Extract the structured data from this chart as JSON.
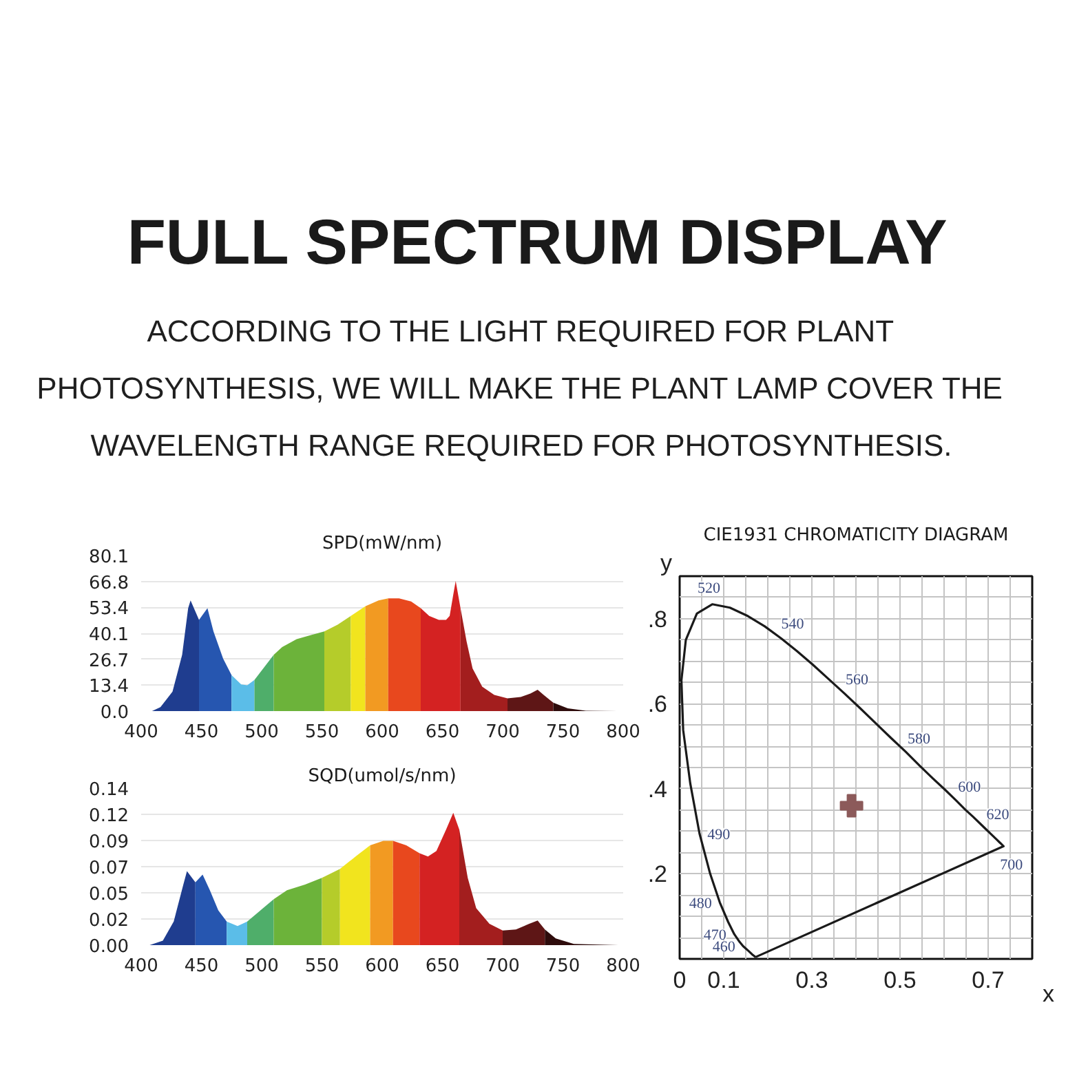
{
  "chart_data": [
    {
      "type": "other",
      "title": "FULL SPECTRUM DISPLAY",
      "subtitle": "ACCORDING TO THE LIGHT REQUIRED FOR PLANT PHOTOSYNTHESIS, WE WILL MAKE THE PLANT LAMP COVER THE WAVELENGTH RANGE REQUIRED FOR PHOTOSYNTHESIS."
    },
    {
      "type": "area",
      "title": "SPD(mW/nm)",
      "xlim": [
        400,
        800
      ],
      "xticks": [
        400,
        450,
        500,
        550,
        600,
        650,
        700,
        750,
        800
      ],
      "ylim": [
        0,
        80.1
      ],
      "yticks": [
        {
          "value": 0,
          "label": "0.0"
        },
        {
          "value": 13.35,
          "label": "13.4"
        },
        26.7,
        {
          "value": 40.05,
          "label": "40.1"
        },
        53.4,
        {
          "value": 66.75,
          "label": "66.8"
        },
        80.1
      ],
      "grid": "y",
      "series": [
        {
          "color": "#1f3d8f",
          "x": [
            409,
            416,
            426,
            434,
            439,
            441,
            448
          ],
          "values": [
            0,
            2,
            10,
            29,
            53,
            57,
            47
          ]
        },
        {
          "color": "#2656b0",
          "x": [
            448,
            455,
            460,
            468,
            475
          ],
          "values": [
            47,
            53,
            41,
            27,
            18.5
          ]
        },
        {
          "color": "#5bbde8",
          "x": [
            475,
            483,
            488,
            494
          ],
          "values": [
            18.5,
            13.7,
            13.3,
            16
          ]
        },
        {
          "color": "#4fae6a",
          "x": [
            494,
            502,
            510
          ],
          "values": [
            16,
            22.5,
            29
          ]
        },
        {
          "color": "#6cb33a",
          "x": [
            510,
            517,
            529,
            540,
            552
          ],
          "values": [
            29,
            33,
            37,
            39,
            41
          ]
        },
        {
          "color": "#b5cc2a",
          "x": [
            552,
            563,
            574
          ],
          "values": [
            41,
            44.5,
            49
          ]
        },
        {
          "color": "#f1e41e",
          "x": [
            574,
            586
          ],
          "values": [
            49,
            54
          ]
        },
        {
          "color": "#f29a22",
          "x": [
            586,
            597,
            605
          ],
          "values": [
            54,
            57,
            58
          ]
        },
        {
          "color": "#e8481e",
          "x": [
            605,
            614,
            624,
            632
          ],
          "values": [
            58,
            58,
            56.4,
            53
          ]
        },
        {
          "color": "#d42222",
          "x": [
            632,
            639,
            647,
            653,
            656,
            659,
            661,
            665
          ],
          "values": [
            53,
            49,
            47,
            47,
            49,
            60,
            67,
            53
          ]
        },
        {
          "color": "#a31e1e",
          "x": [
            665,
            670,
            675,
            683,
            693,
            704
          ],
          "values": [
            53,
            36,
            22,
            12.6,
            8.3,
            6.6
          ]
        },
        {
          "color": "#5e1616",
          "x": [
            704,
            715,
            723,
            729,
            734,
            742
          ],
          "values": [
            6.6,
            7.3,
            9,
            11,
            8.3,
            4.3
          ]
        },
        {
          "color": "#2e0c0c",
          "x": [
            742,
            754,
            769,
            795
          ],
          "values": [
            4.3,
            1.4,
            0.2,
            0
          ]
        }
      ]
    },
    {
      "type": "area",
      "title": "SQD(umol/s/nm)",
      "xlim": [
        400,
        800
      ],
      "xticks": [
        400,
        450,
        500,
        550,
        600,
        650,
        700,
        750,
        800
      ],
      "ylim": [
        0,
        0.14
      ],
      "yticks": [
        {
          "value": 0,
          "label": "0.00"
        },
        {
          "value": 0.0233,
          "label": "0.02"
        },
        {
          "value": 0.0467,
          "label": "0.05"
        },
        0.07,
        {
          "value": 0.0933,
          "label": "0.09"
        },
        {
          "value": 0.1167,
          "label": "0.12"
        },
        0.14
      ],
      "grid": "y",
      "series": [
        {
          "color": "#1f3d8f",
          "x": [
            407,
            418,
            427,
            435,
            438,
            445
          ],
          "values": [
            0,
            0.004,
            0.021,
            0.054,
            0.066,
            0.056
          ]
        },
        {
          "color": "#2656b0",
          "x": [
            445,
            451,
            457,
            464,
            471
          ],
          "values": [
            0.056,
            0.063,
            0.049,
            0.031,
            0.021
          ]
        },
        {
          "color": "#5bbde8",
          "x": [
            471,
            480,
            488
          ],
          "values": [
            0.021,
            0.017,
            0.021
          ]
        },
        {
          "color": "#4fae6a",
          "x": [
            488,
            499,
            510
          ],
          "values": [
            0.021,
            0.031,
            0.041
          ]
        },
        {
          "color": "#6cb33a",
          "x": [
            510,
            521,
            536,
            550
          ],
          "values": [
            0.041,
            0.049,
            0.054,
            0.06
          ]
        },
        {
          "color": "#b5cc2a",
          "x": [
            550,
            565
          ],
          "values": [
            0.06,
            0.068
          ]
        },
        {
          "color": "#f1e41e",
          "x": [
            565,
            579,
            590
          ],
          "values": [
            0.068,
            0.08,
            0.089
          ]
        },
        {
          "color": "#f29a22",
          "x": [
            590,
            601,
            609
          ],
          "values": [
            0.089,
            0.093,
            0.093
          ]
        },
        {
          "color": "#e8481e",
          "x": [
            609,
            620,
            631
          ],
          "values": [
            0.093,
            0.089,
            0.082
          ]
        },
        {
          "color": "#d42222",
          "x": [
            631,
            638,
            645,
            653,
            659,
            664
          ],
          "values": [
            0.082,
            0.079,
            0.084,
            0.103,
            0.118,
            0.103
          ]
        },
        {
          "color": "#a31e1e",
          "x": [
            664,
            671,
            678,
            689,
            700
          ],
          "values": [
            0.103,
            0.06,
            0.033,
            0.019,
            0.013
          ]
        },
        {
          "color": "#5e1616",
          "x": [
            700,
            711,
            722,
            729,
            735
          ],
          "values": [
            0.013,
            0.014,
            0.019,
            0.022,
            0.014
          ]
        },
        {
          "color": "#2e0c0c",
          "x": [
            735,
            744,
            759,
            796
          ],
          "values": [
            0.014,
            0.006,
            0.001,
            0
          ]
        }
      ]
    },
    {
      "type": "line",
      "title": "CIE1931 CHROMATICITY DIAGRAM",
      "xlabel": "x",
      "ylabel": "y",
      "xlim": [
        0,
        0.8
      ],
      "ylim": [
        0,
        0.9
      ],
      "grid": true,
      "xticks": [
        0,
        {
          "value": 0.05,
          "label": null
        },
        0.1,
        {
          "value": 0.15,
          "label": null
        },
        {
          "value": 0.2,
          "label": null
        },
        {
          "value": 0.25,
          "label": null
        },
        0.3,
        {
          "value": 0.35,
          "label": null
        },
        {
          "value": 0.4,
          "label": null
        },
        {
          "value": 0.45,
          "label": null
        },
        0.5,
        {
          "value": 0.55,
          "label": null
        },
        {
          "value": 0.6,
          "label": null
        },
        {
          "value": 0.65,
          "label": null
        },
        0.7,
        {
          "value": 0.75,
          "label": null
        }
      ],
      "yticks": [
        {
          "value": 0.05,
          "label": null
        },
        {
          "value": 0.1,
          "label": null
        },
        {
          "value": 0.15,
          "label": null
        },
        {
          "value": 0.2,
          "label": ".2"
        },
        {
          "value": 0.25,
          "label": null
        },
        {
          "value": 0.3,
          "label": null
        },
        {
          "value": 0.35,
          "label": null
        },
        {
          "value": 0.4,
          "label": ".4"
        },
        {
          "value": 0.45,
          "label": null
        },
        {
          "value": 0.5,
          "label": null
        },
        {
          "value": 0.55,
          "label": null
        },
        {
          "value": 0.6,
          "label": ".6"
        },
        {
          "value": 0.65,
          "label": null
        },
        {
          "value": 0.7,
          "label": null
        },
        {
          "value": 0.75,
          "label": null
        },
        {
          "value": 0.8,
          "label": ".8"
        },
        {
          "value": 0.85,
          "label": null
        }
      ],
      "series": [
        {
          "color": "#1a1a1a",
          "x": [
            0.171,
            0.169,
            0.164,
            0.157,
            0.144,
            0.136,
            0.124,
            0.11,
            0.091,
            0.069,
            0.045,
            0.024,
            0.008,
            0.004,
            0.014,
            0.039,
            0.074,
            0.114,
            0.155,
            0.193,
            0.23,
            0.266,
            0.302,
            0.337,
            0.373,
            0.409,
            0.444,
            0.479,
            0.513,
            0.545,
            0.575,
            0.603,
            0.627,
            0.648,
            0.666,
            0.692,
            0.708,
            0.719,
            0.726,
            0.73,
            0.733,
            0.735,
            0.174
          ],
          "values": [
            0.005,
            0.007,
            0.011,
            0.018,
            0.03,
            0.04,
            0.058,
            0.087,
            0.133,
            0.201,
            0.295,
            0.413,
            0.538,
            0.655,
            0.75,
            0.812,
            0.834,
            0.826,
            0.806,
            0.782,
            0.754,
            0.724,
            0.692,
            0.659,
            0.625,
            0.59,
            0.555,
            0.52,
            0.487,
            0.454,
            0.424,
            0.397,
            0.373,
            0.351,
            0.334,
            0.308,
            0.292,
            0.281,
            0.274,
            0.27,
            0.267,
            0.265,
            0.005
          ]
        },
        {
          "type": "scatter",
          "marker": "cross",
          "color": "#8c5a5a",
          "x": [
            0.39
          ],
          "values": [
            0.36
          ]
        }
      ],
      "annotations": [
        {
          "text": "520",
          "x": 0.074,
          "y": 0.834
        },
        {
          "text": "540",
          "x": 0.23,
          "y": 0.754
        },
        {
          "text": "560",
          "x": 0.373,
          "y": 0.625
        },
        {
          "text": "580",
          "x": 0.513,
          "y": 0.487
        },
        {
          "text": "600",
          "x": 0.627,
          "y": 0.373
        },
        {
          "text": "620",
          "x": 0.692,
          "y": 0.308
        },
        {
          "text": "700",
          "x": 0.735,
          "y": 0.265
        },
        {
          "text": "490",
          "x": 0.045,
          "y": 0.295
        },
        {
          "text": "480",
          "x": 0.091,
          "y": 0.133
        },
        {
          "text": "470",
          "x": 0.124,
          "y": 0.058
        },
        {
          "text": "460",
          "x": 0.144,
          "y": 0.03
        }
      ]
    }
  ]
}
